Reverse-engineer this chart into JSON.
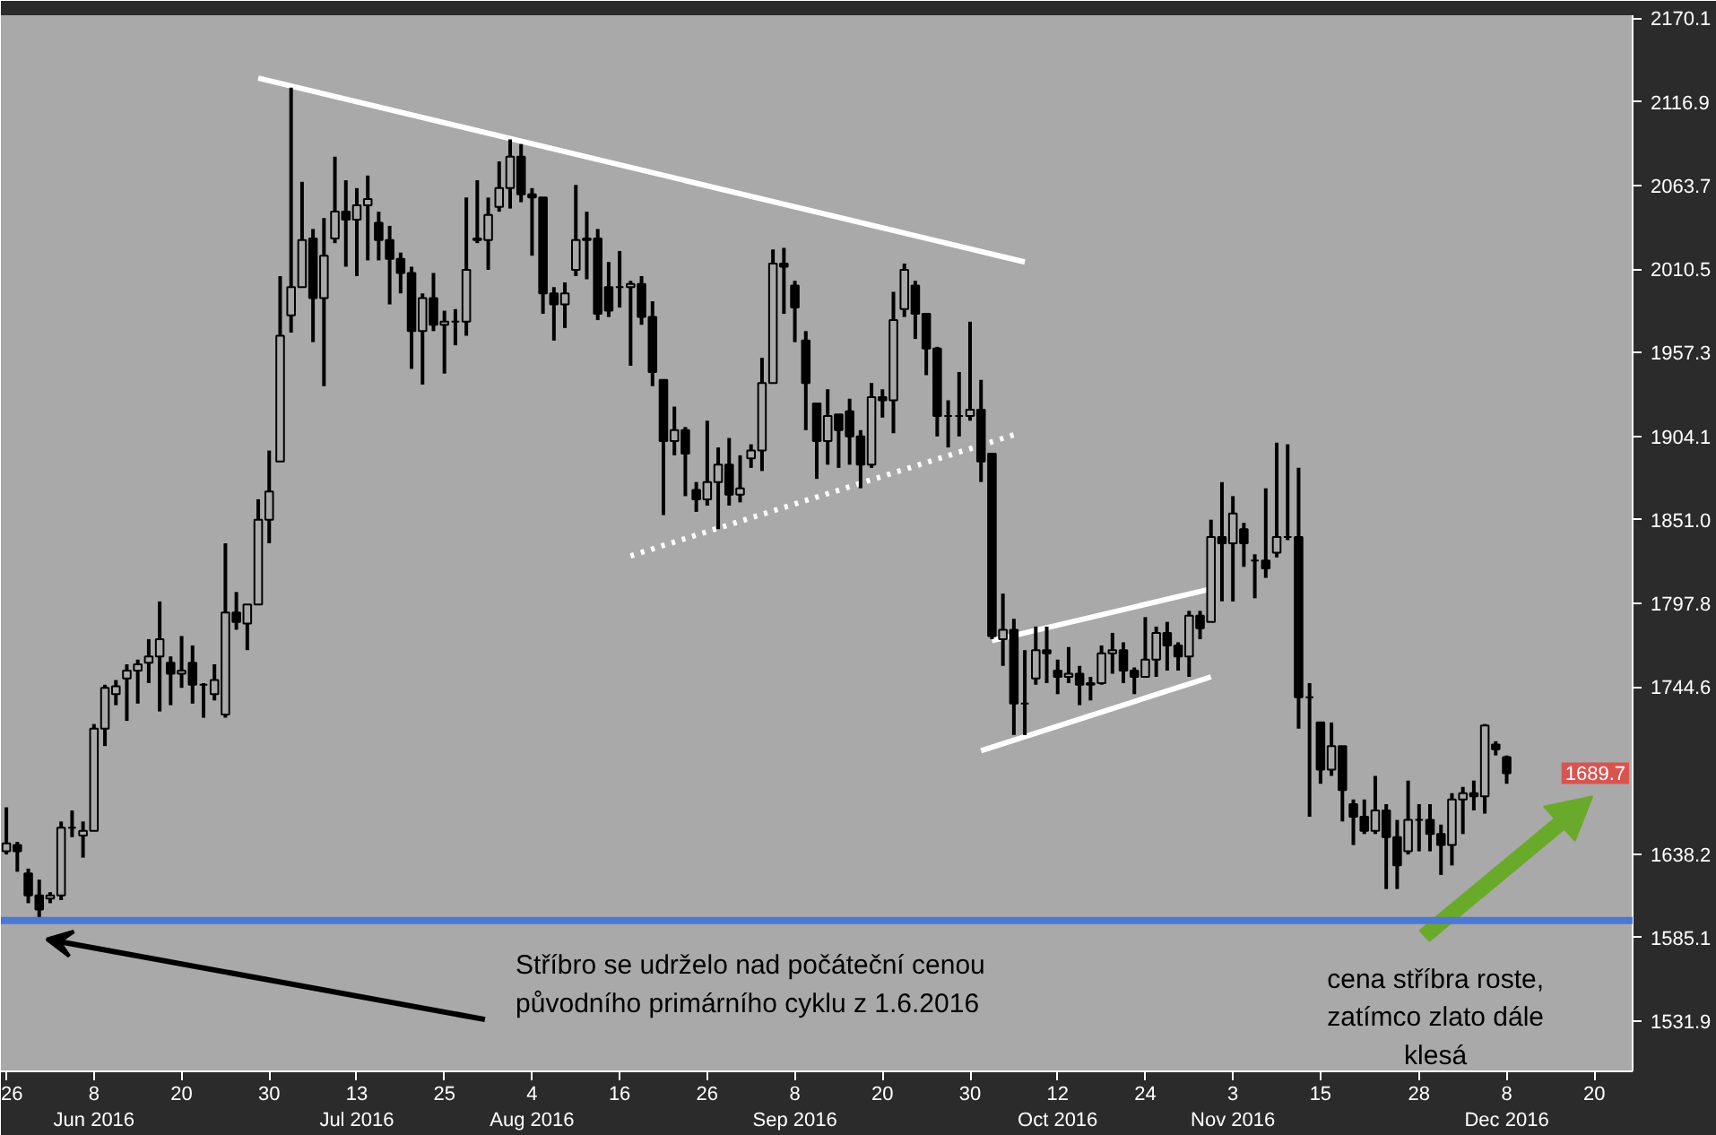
{
  "chart_data": {
    "type": "candlestick",
    "color": "#000000",
    "categories": [
      "26",
      null,
      null,
      null,
      null,
      null,
      null,
      null,
      "8\nJun 2016",
      null,
      null,
      null,
      null,
      null,
      null,
      null,
      "20",
      null,
      null,
      null,
      null,
      null,
      null,
      null,
      "30",
      null,
      null,
      null,
      null,
      null,
      null,
      null,
      "13\nJul 2016",
      null,
      null,
      null,
      null,
      null,
      null,
      null,
      "25",
      null,
      null,
      null,
      null,
      null,
      null,
      null,
      "4\nAug 2016",
      null,
      null,
      null,
      null,
      null,
      null,
      null,
      "16",
      null,
      null,
      null,
      null,
      null,
      null,
      null,
      "26",
      null,
      null,
      null,
      null,
      null,
      null,
      null,
      "8\nSep 2016",
      null,
      null,
      null,
      null,
      null,
      null,
      null,
      "20",
      null,
      null,
      null,
      null,
      null,
      null,
      null,
      "30",
      null,
      null,
      null,
      null,
      null,
      null,
      null,
      "12\nOct 2016",
      null,
      null,
      null,
      null,
      null,
      null,
      null,
      "24",
      null,
      null,
      null,
      null,
      null,
      null,
      null,
      "3\nNov 2016",
      null,
      null,
      null,
      null,
      null,
      null,
      null,
      "15",
      null,
      null,
      null,
      null,
      null,
      null,
      null,
      null,
      "28",
      null,
      null,
      null,
      null,
      null,
      null,
      null,
      "8\nDec 2016",
      null,
      null,
      null,
      null,
      null,
      null,
      null,
      "20",
      null,
      null,
      null
    ],
    "ohlc": [
      [
        1640,
        1668,
        1638,
        1645
      ],
      [
        1644,
        1646,
        1627,
        1640
      ],
      [
        1626,
        1629,
        1607,
        1612
      ],
      [
        1612,
        1622,
        1596,
        1603
      ],
      [
        1610,
        1614,
        1607,
        1612
      ],
      [
        1612,
        1659,
        1609,
        1655
      ],
      [
        1655,
        1666,
        1649,
        1655
      ],
      [
        1650,
        1659,
        1636,
        1653
      ],
      [
        1653,
        1721,
        1653,
        1718
      ],
      [
        1718,
        1746,
        1707,
        1744
      ],
      [
        1740,
        1749,
        1733,
        1745
      ],
      [
        1750,
        1759,
        1723,
        1755
      ],
      [
        1755,
        1762,
        1734,
        1759
      ],
      [
        1760,
        1775,
        1747,
        1764
      ],
      [
        1764,
        1799,
        1729,
        1775
      ],
      [
        1760,
        1764,
        1733,
        1753
      ],
      [
        1753,
        1777,
        1744,
        1755
      ],
      [
        1760,
        1771,
        1734,
        1746
      ],
      [
        1746,
        1747,
        1725,
        1746
      ],
      [
        1740,
        1759,
        1736,
        1749
      ],
      [
        1727,
        1836,
        1725,
        1792
      ],
      [
        1792,
        1805,
        1781,
        1786
      ],
      [
        1785,
        1797,
        1768,
        1797
      ],
      [
        1797,
        1864,
        1797,
        1851
      ],
      [
        1851,
        1895,
        1836,
        1869
      ],
      [
        1888,
        2006,
        1888,
        1968
      ],
      [
        1981,
        2126,
        1970,
        1999
      ],
      [
        1999,
        2066,
        1999,
        2029
      ],
      [
        2030,
        2036,
        1964,
        1992
      ],
      [
        1992,
        2043,
        1936,
        2019
      ],
      [
        2030,
        2082,
        2027,
        2047
      ],
      [
        2047,
        2067,
        2012,
        2042
      ],
      [
        2042,
        2062,
        2006,
        2051
      ],
      [
        2051,
        2070,
        2016,
        2055
      ],
      [
        2040,
        2047,
        2016,
        2029
      ],
      [
        2029,
        2038,
        1988,
        2017
      ],
      [
        2017,
        2021,
        1995,
        2008
      ],
      [
        2008,
        2012,
        1947,
        1971
      ],
      [
        1971,
        1995,
        1937,
        1992
      ],
      [
        1992,
        2008,
        1971,
        1975
      ],
      [
        1975,
        1984,
        1944,
        1977
      ],
      [
        1977,
        1985,
        1962,
        1977
      ],
      [
        1977,
        2056,
        1968,
        2010
      ],
      [
        2030,
        2067,
        2027,
        2029
      ],
      [
        2029,
        2056,
        2010,
        2045
      ],
      [
        2050,
        2079,
        2047,
        2062
      ],
      [
        2062,
        2093,
        2049,
        2082
      ],
      [
        2082,
        2090,
        2053,
        2058
      ],
      [
        2058,
        2062,
        2019,
        2056
      ],
      [
        2056,
        2056,
        1982,
        1995
      ],
      [
        1995,
        1999,
        1965,
        1988
      ],
      [
        1988,
        2002,
        1973,
        1995
      ],
      [
        2010,
        2064,
        2006,
        2029
      ],
      [
        2029,
        2047,
        2004,
        2030
      ],
      [
        2030,
        2036,
        1978,
        1982
      ],
      [
        1999,
        2015,
        1980,
        1984
      ],
      [
        1999,
        2022,
        1986,
        1999
      ],
      [
        1999,
        2003,
        1949,
        2001
      ],
      [
        2001,
        2006,
        1975,
        1980
      ],
      [
        1980,
        1990,
        1936,
        1945
      ],
      [
        1940,
        1940,
        1854,
        1901
      ],
      [
        1901,
        1923,
        1892,
        1908
      ],
      [
        1908,
        1910,
        1866,
        1893
      ],
      [
        1870,
        1875,
        1856,
        1864
      ],
      [
        1864,
        1914,
        1860,
        1875
      ],
      [
        1875,
        1897,
        1845,
        1886
      ],
      [
        1886,
        1903,
        1860,
        1867
      ],
      [
        1867,
        1892,
        1862,
        1871
      ],
      [
        1890,
        1899,
        1884,
        1895
      ],
      [
        1895,
        1954,
        1882,
        1938
      ],
      [
        1938,
        2023,
        1938,
        2014
      ],
      [
        2014,
        2024,
        1982,
        2012
      ],
      [
        2000,
        2003,
        1964,
        1986
      ],
      [
        1965,
        1971,
        1908,
        1938
      ],
      [
        1925,
        1925,
        1877,
        1901
      ],
      [
        1901,
        1934,
        1886,
        1917
      ],
      [
        1918,
        1918,
        1884,
        1908
      ],
      [
        1920,
        1928,
        1886,
        1904
      ],
      [
        1904,
        1908,
        1871,
        1886
      ],
      [
        1886,
        1938,
        1884,
        1929
      ],
      [
        1929,
        1934,
        1916,
        1927
      ],
      [
        1927,
        1996,
        1906,
        1978
      ],
      [
        1985,
        2014,
        1980,
        2010
      ],
      [
        2000,
        2003,
        1966,
        1982
      ],
      [
        1982,
        1982,
        1943,
        1960
      ],
      [
        1960,
        1961,
        1904,
        1917
      ],
      [
        1917,
        1927,
        1897,
        1917
      ],
      [
        1917,
        1945,
        1904,
        1917
      ],
      [
        1917,
        1977,
        1914,
        1921
      ],
      [
        1921,
        1940,
        1875,
        1888
      ],
      [
        1893,
        1893,
        1775,
        1777
      ],
      [
        1775,
        1804,
        1758,
        1781
      ],
      [
        1781,
        1788,
        1714,
        1734
      ],
      [
        1734,
        1768,
        1714,
        1734
      ],
      [
        1750,
        1783,
        1746,
        1768
      ],
      [
        1768,
        1783,
        1747,
        1766
      ],
      [
        1755,
        1762,
        1740,
        1751
      ],
      [
        1751,
        1770,
        1747,
        1753
      ],
      [
        1753,
        1758,
        1733,
        1746
      ],
      [
        1746,
        1751,
        1736,
        1747
      ],
      [
        1747,
        1771,
        1746,
        1766
      ],
      [
        1766,
        1779,
        1753,
        1768
      ],
      [
        1768,
        1773,
        1747,
        1755
      ],
      [
        1755,
        1757,
        1740,
        1751
      ],
      [
        1751,
        1789,
        1751,
        1762
      ],
      [
        1762,
        1783,
        1751,
        1779
      ],
      [
        1779,
        1786,
        1755,
        1771
      ],
      [
        1771,
        1773,
        1755,
        1764
      ],
      [
        1764,
        1793,
        1751,
        1790
      ],
      [
        1790,
        1793,
        1775,
        1782
      ],
      [
        1786,
        1851,
        1786,
        1840
      ],
      [
        1840,
        1875,
        1799,
        1836
      ],
      [
        1836,
        1866,
        1799,
        1855
      ],
      [
        1845,
        1849,
        1821,
        1836
      ],
      [
        1825,
        1829,
        1801,
        1825
      ],
      [
        1825,
        1871,
        1814,
        1820
      ],
      [
        1830,
        1900,
        1827,
        1840
      ],
      [
        1840,
        1899,
        1838,
        1840
      ],
      [
        1840,
        1884,
        1718,
        1738
      ],
      [
        1738,
        1747,
        1662,
        1738
      ],
      [
        1722,
        1722,
        1683,
        1692
      ],
      [
        1692,
        1722,
        1688,
        1707
      ],
      [
        1707,
        1707,
        1659,
        1679
      ],
      [
        1670,
        1673,
        1644,
        1662
      ],
      [
        1662,
        1673,
        1651,
        1653
      ],
      [
        1653,
        1688,
        1651,
        1666
      ],
      [
        1666,
        1670,
        1616,
        1649
      ],
      [
        1649,
        1660,
        1616,
        1631
      ],
      [
        1640,
        1685,
        1638,
        1660
      ],
      [
        1660,
        1670,
        1640,
        1660
      ],
      [
        1660,
        1670,
        1640,
        1651
      ],
      [
        1651,
        1657,
        1625,
        1644
      ],
      [
        1644,
        1677,
        1631,
        1673
      ],
      [
        1673,
        1681,
        1651,
        1677
      ],
      [
        1677,
        1685,
        1666,
        1675
      ],
      [
        1675,
        1721,
        1664,
        1720
      ],
      [
        1708,
        1710,
        1701,
        1705
      ],
      [
        1700,
        1701,
        1683,
        1689.7
      ],
      null,
      null,
      null,
      null,
      null,
      null,
      null,
      null,
      null,
      null,
      null
    ],
    "series": [
      {
        "type": "line",
        "color": "#ffffff",
        "line_style": "solid",
        "values": [
          null,
          null,
          null,
          null,
          null,
          null,
          null,
          null,
          null,
          null,
          null,
          null,
          null,
          null,
          null,
          null,
          null,
          null,
          null,
          null,
          null,
          null,
          null,
          2132,
          null,
          null,
          null,
          null,
          null,
          null,
          null,
          null,
          null,
          null,
          null,
          null,
          null,
          null,
          null,
          null,
          null,
          null,
          null,
          null,
          null,
          null,
          null,
          null,
          null,
          null,
          null,
          null,
          null,
          null,
          null,
          null,
          null,
          null,
          null,
          null,
          null,
          null,
          null,
          null,
          null,
          null,
          null,
          null,
          null,
          null,
          null,
          null,
          null,
          null,
          null,
          null,
          null,
          null,
          null,
          null,
          null,
          null,
          null,
          null,
          null,
          null,
          null,
          null,
          null,
          null,
          null,
          null,
          null,
          2015,
          null,
          null,
          null,
          null,
          null,
          null,
          null,
          null,
          null,
          null,
          null,
          null,
          null,
          null,
          null,
          null,
          null,
          null,
          null,
          null,
          null,
          null,
          null,
          null,
          null,
          null,
          null,
          null,
          null,
          null,
          null,
          null,
          null,
          null,
          null,
          null,
          null,
          null,
          null,
          null,
          null,
          null,
          null,
          null,
          null,
          null,
          null,
          null,
          null,
          null,
          null,
          null,
          null,
          null,
          null
        ]
      },
      {
        "type": "line",
        "color": "#ffffff",
        "line_style": "dotted",
        "values": [
          null,
          null,
          null,
          null,
          null,
          null,
          null,
          null,
          null,
          null,
          null,
          null,
          null,
          null,
          null,
          null,
          null,
          null,
          null,
          null,
          null,
          null,
          null,
          null,
          null,
          null,
          null,
          null,
          null,
          null,
          null,
          null,
          null,
          null,
          null,
          null,
          null,
          null,
          null,
          null,
          null,
          null,
          null,
          null,
          null,
          null,
          null,
          null,
          null,
          null,
          null,
          null,
          null,
          null,
          null,
          null,
          null,
          1828,
          null,
          null,
          null,
          null,
          null,
          null,
          null,
          null,
          null,
          null,
          null,
          null,
          null,
          null,
          null,
          null,
          null,
          null,
          null,
          null,
          null,
          null,
          null,
          null,
          null,
          null,
          null,
          null,
          null,
          null,
          null,
          null,
          null,
          null,
          1905,
          null,
          null,
          null,
          null,
          null,
          null,
          null,
          null,
          null,
          null,
          null,
          null,
          null,
          null,
          null,
          null,
          null,
          null,
          null,
          null,
          null,
          null,
          null,
          null,
          null,
          null,
          null,
          null,
          null,
          null,
          null,
          null,
          null,
          null,
          null,
          null,
          null,
          null,
          null,
          null,
          null,
          null,
          null,
          null,
          null,
          null,
          null,
          null,
          null,
          null,
          null,
          null,
          null,
          null,
          null,
          null
        ]
      },
      {
        "type": "line",
        "color": "#ffffff",
        "line_style": "solid",
        "values": [
          null,
          null,
          null,
          null,
          null,
          null,
          null,
          null,
          null,
          null,
          null,
          null,
          null,
          null,
          null,
          null,
          null,
          null,
          null,
          null,
          null,
          null,
          null,
          null,
          null,
          null,
          null,
          null,
          null,
          null,
          null,
          null,
          null,
          null,
          null,
          null,
          null,
          null,
          null,
          null,
          null,
          null,
          null,
          null,
          null,
          null,
          null,
          null,
          null,
          null,
          null,
          null,
          null,
          null,
          null,
          null,
          null,
          null,
          null,
          null,
          null,
          null,
          null,
          null,
          null,
          null,
          null,
          null,
          null,
          null,
          null,
          null,
          null,
          null,
          null,
          null,
          null,
          null,
          null,
          null,
          null,
          null,
          null,
          null,
          null,
          null,
          null,
          null,
          null,
          null,
          1774,
          null,
          null,
          null,
          null,
          null,
          null,
          null,
          null,
          null,
          null,
          null,
          null,
          null,
          null,
          null,
          null,
          null,
          null,
          null,
          1807,
          null,
          null,
          null,
          null,
          null,
          null,
          null,
          null,
          null,
          null,
          null,
          null,
          null,
          null,
          null,
          null,
          null,
          null,
          null,
          null,
          null,
          null,
          null,
          null,
          null,
          null,
          null,
          null,
          null,
          null,
          null,
          null,
          null,
          null,
          null,
          null,
          null,
          null
        ]
      },
      {
        "type": "line",
        "color": "#ffffff",
        "line_style": "solid",
        "values": [
          null,
          null,
          null,
          null,
          null,
          null,
          null,
          null,
          null,
          null,
          null,
          null,
          null,
          null,
          null,
          null,
          null,
          null,
          null,
          null,
          null,
          null,
          null,
          null,
          null,
          null,
          null,
          null,
          null,
          null,
          null,
          null,
          null,
          null,
          null,
          null,
          null,
          null,
          null,
          null,
          null,
          null,
          null,
          null,
          null,
          null,
          null,
          null,
          null,
          null,
          null,
          null,
          null,
          null,
          null,
          null,
          null,
          null,
          null,
          null,
          null,
          null,
          null,
          null,
          null,
          null,
          null,
          null,
          null,
          null,
          null,
          null,
          null,
          null,
          null,
          null,
          null,
          null,
          null,
          null,
          null,
          null,
          null,
          null,
          null,
          null,
          null,
          null,
          null,
          1704,
          null,
          null,
          null,
          null,
          null,
          null,
          null,
          null,
          null,
          null,
          null,
          null,
          null,
          null,
          null,
          null,
          null,
          null,
          null,
          null,
          1751,
          null,
          null,
          null,
          null,
          null,
          null,
          null,
          null,
          null,
          null,
          null,
          null,
          null,
          null,
          null,
          null,
          null,
          null,
          null,
          null,
          null,
          null,
          null,
          null,
          null,
          null,
          null,
          null,
          null,
          null,
          null,
          null,
          null,
          null,
          null,
          null,
          null,
          null
        ]
      }
    ],
    "ylim": [
      1500,
      2172
    ],
    "yticks": [
      2170.1,
      2116.9,
      2063.7,
      2010.5,
      1957.3,
      1904.1,
      {
        "value": 1851.0,
        "label": "1851.0"
      },
      1797.8,
      1744.6,
      1638.2,
      1585.1,
      1531.9
    ],
    "ref_lines": [
      {
        "axis": "y",
        "value": 1596,
        "color": "#4a78d4"
      }
    ],
    "annotations": [
      "Stříbro se udrželo nad počáteční cenou\npůvodního primárního cyklu z 1.6.2016",
      "cena stříbra roste,\nzatímco zlato dále\nklesá",
      {
        "text": "1689.7",
        "y": 1689.7
      }
    ]
  }
}
